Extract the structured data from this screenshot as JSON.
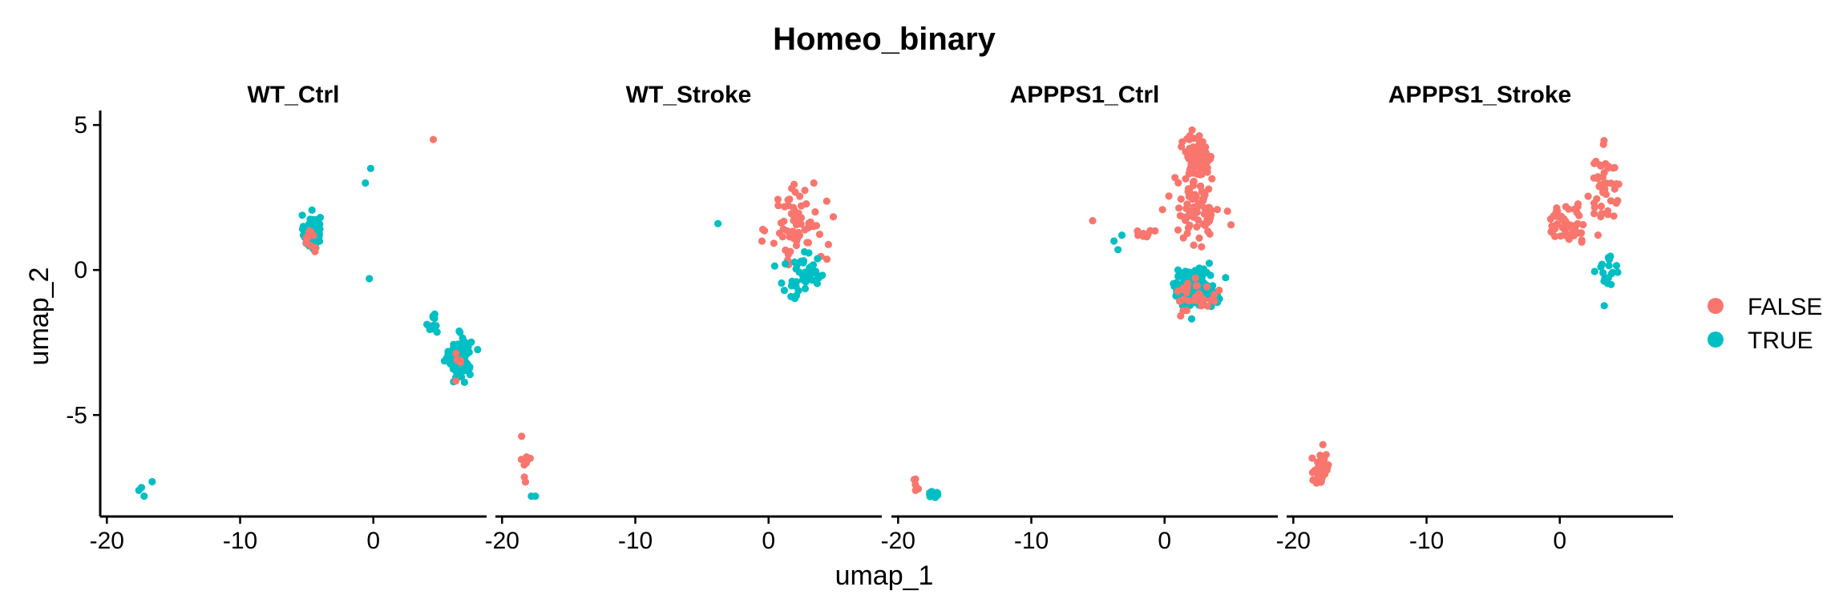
{
  "chart_data": {
    "type": "scatter",
    "title": "Homeo_binary",
    "xlabel": "umap_1",
    "ylabel": "umap_2",
    "xlim": [
      -20.5,
      8.5
    ],
    "ylim": [
      -8.5,
      5.5
    ],
    "x_ticks": [
      -20,
      -10,
      0
    ],
    "x_tick_labels": [
      "-20",
      "-10",
      "0"
    ],
    "y_ticks": [
      5,
      0,
      -5
    ],
    "y_tick_labels": [
      "5",
      "0",
      "-5"
    ],
    "grid": false,
    "legend_position": "right",
    "legend": [
      {
        "label": "FALSE",
        "color": "#F8766D"
      },
      {
        "label": "TRUE",
        "color": "#00BFC4"
      }
    ],
    "clusters": [
      {
        "panel": 0,
        "cls": 1,
        "cx": -4.6,
        "cy": 1.3,
        "sx": 0.55,
        "sy": 0.55,
        "n": 70
      },
      {
        "panel": 0,
        "cls": 0,
        "cx": -4.7,
        "cy": 1.1,
        "sx": 0.5,
        "sy": 0.6,
        "n": 10
      },
      {
        "panel": 0,
        "cls": 1,
        "cx": 6.5,
        "cy": -3.0,
        "sx": 0.75,
        "sy": 0.6,
        "n": 150
      },
      {
        "panel": 0,
        "cls": 1,
        "cx": 4.5,
        "cy": -1.9,
        "sx": 0.35,
        "sy": 0.4,
        "n": 12
      },
      {
        "panel": 0,
        "cls": 0,
        "cx": 6.6,
        "cy": -3.2,
        "sx": 0.5,
        "sy": 0.5,
        "n": 5
      },
      {
        "panel": 1,
        "cls": 0,
        "cx": 2.2,
        "cy": 1.6,
        "sx": 1.9,
        "sy": 1.3,
        "n": 70
      },
      {
        "panel": 1,
        "cls": 1,
        "cx": 2.6,
        "cy": -0.2,
        "sx": 1.6,
        "sy": 0.8,
        "n": 45
      },
      {
        "panel": 1,
        "cls": 0,
        "cx": -18.4,
        "cy": -6.6,
        "sx": 0.5,
        "sy": 0.6,
        "n": 10
      },
      {
        "panel": 2,
        "cls": 0,
        "cx": 2.6,
        "cy": 3.9,
        "sx": 0.9,
        "sy": 0.6,
        "n": 110
      },
      {
        "panel": 2,
        "cls": 0,
        "cx": 2.4,
        "cy": 2.1,
        "sx": 1.6,
        "sy": 1.1,
        "n": 80
      },
      {
        "panel": 2,
        "cls": 1,
        "cx": 2.2,
        "cy": -0.6,
        "sx": 1.5,
        "sy": 0.6,
        "n": 130
      },
      {
        "panel": 2,
        "cls": 0,
        "cx": 2.4,
        "cy": -0.9,
        "sx": 1.4,
        "sy": 0.5,
        "n": 30
      },
      {
        "panel": 2,
        "cls": 0,
        "cx": -1.5,
        "cy": 1.3,
        "sx": 0.5,
        "sy": 0.3,
        "n": 10
      },
      {
        "panel": 2,
        "cls": 1,
        "cx": -17.3,
        "cy": -7.7,
        "sx": 0.3,
        "sy": 0.2,
        "n": 10
      },
      {
        "panel": 2,
        "cls": 0,
        "cx": -18.6,
        "cy": -7.4,
        "sx": 0.3,
        "sy": 0.2,
        "n": 5
      },
      {
        "panel": 3,
        "cls": 0,
        "cx": 0.6,
        "cy": 1.6,
        "sx": 1.6,
        "sy": 0.6,
        "n": 60
      },
      {
        "panel": 3,
        "cls": 0,
        "cx": 3.4,
        "cy": 2.9,
        "sx": 1.0,
        "sy": 1.1,
        "n": 45
      },
      {
        "panel": 3,
        "cls": 1,
        "cx": 3.4,
        "cy": -0.2,
        "sx": 1.1,
        "sy": 0.8,
        "n": 18
      },
      {
        "panel": 3,
        "cls": 0,
        "cx": -17.9,
        "cy": -6.8,
        "sx": 0.6,
        "sy": 0.5,
        "n": 45
      }
    ],
    "extra_points": [
      {
        "panel": 0,
        "cls": 0,
        "x": 4.5,
        "y": 4.5
      },
      {
        "panel": 0,
        "cls": 1,
        "x": -0.6,
        "y": 3.0
      },
      {
        "panel": 0,
        "cls": 1,
        "x": -0.2,
        "y": 3.5
      },
      {
        "panel": 0,
        "cls": 1,
        "x": -0.3,
        "y": -0.3
      },
      {
        "panel": 0,
        "cls": 1,
        "x": -17.6,
        "y": -7.6
      },
      {
        "panel": 0,
        "cls": 1,
        "x": -17.2,
        "y": -7.8
      },
      {
        "panel": 0,
        "cls": 1,
        "x": -16.6,
        "y": -7.3
      },
      {
        "panel": 0,
        "cls": 1,
        "x": -17.4,
        "y": -7.5
      },
      {
        "panel": 1,
        "cls": 1,
        "x": -3.8,
        "y": 1.6
      },
      {
        "panel": 1,
        "cls": 1,
        "x": -17.8,
        "y": -7.8
      },
      {
        "panel": 1,
        "cls": 1,
        "x": -17.5,
        "y": -7.8
      },
      {
        "panel": 2,
        "cls": 0,
        "x": -5.4,
        "y": 1.7
      },
      {
        "panel": 2,
        "cls": 1,
        "x": -3.8,
        "y": 1.0
      },
      {
        "panel": 2,
        "cls": 1,
        "x": -3.2,
        "y": 1.2
      },
      {
        "panel": 2,
        "cls": 1,
        "x": -3.5,
        "y": 0.7
      }
    ],
    "series": [
      {
        "name": "FALSE",
        "color": "#F8766D"
      },
      {
        "name": "TRUE",
        "color": "#00BFC4"
      }
    ],
    "panels": [
      {
        "label": "WT_Ctrl"
      },
      {
        "label": "WT_Stroke"
      },
      {
        "label": "APPPS1_Ctrl"
      },
      {
        "label": "APPPS1_Stroke"
      }
    ]
  }
}
